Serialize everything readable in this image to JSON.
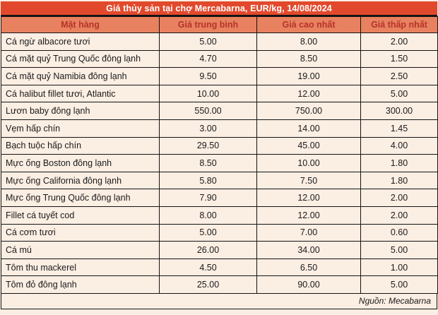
{
  "title": "Giá thủy sản tại chợ Mercabarna, EUR/kg, 14/08/2024",
  "source_note": "Nguồn: Mecabarna",
  "colors": {
    "title_bg": "#e2492c",
    "title_text": "#ffffff",
    "header_bg": "#e8815f",
    "header_text": "#b5332b",
    "row_bg": "#fbeee3",
    "row_text": "#1b1b1b",
    "border": "#141414"
  },
  "chart_data": {
    "type": "table",
    "title": "Giá thủy sản tại chợ Mercabarna, EUR/kg, 14/08/2024",
    "columns": [
      "Mặt hàng",
      "Giá trung bình",
      "Giá cao nhất",
      "Giá thấp nhất"
    ],
    "unit": "EUR/kg",
    "date": "14/08/2024",
    "rows": [
      [
        "Cá ngừ albacore tươi",
        "5.00",
        "8.00",
        "2.00"
      ],
      [
        "Cá mặt quỷ Trung Quốc đông lạnh",
        "4.70",
        "8.50",
        "1.50"
      ],
      [
        "Cá mặt quỷ Namibia đông lạnh",
        "9.50",
        "19.00",
        "2.50"
      ],
      [
        "Cá halibut fillet tươi, Atlantic",
        "10.00",
        "12.00",
        "5.00"
      ],
      [
        "Lươn baby đông lạnh",
        "550.00",
        "750.00",
        "300.00"
      ],
      [
        "Vẹm hấp chín",
        "3.00",
        "14.00",
        "1.45"
      ],
      [
        "Bạch tuộc hấp chín",
        "29.50",
        "45.00",
        "4.00"
      ],
      [
        "Mực ống Boston đông lạnh",
        "8.50",
        "10.00",
        "1.80"
      ],
      [
        "Mực ống California đông lạnh",
        "5.80",
        "7.50",
        "1.80"
      ],
      [
        "Mực ống Trung Quốc đông lạnh",
        "7.90",
        "12.00",
        "2.00"
      ],
      [
        "Fillet cá tuyết cod",
        "8.00",
        "12.00",
        "2.00"
      ],
      [
        "Cá cơm tươi",
        "5.00",
        "7.00",
        "0.60"
      ],
      [
        "Cá mú",
        "26.00",
        "34.00",
        "5.00"
      ],
      [
        "Tôm thu mackerel",
        "4.50",
        "6.50",
        "1.00"
      ],
      [
        "Tôm đỏ đông lạnh",
        "25.00",
        "90.00",
        "5.00"
      ]
    ],
    "source": "Nguồn: Mecabarna"
  }
}
